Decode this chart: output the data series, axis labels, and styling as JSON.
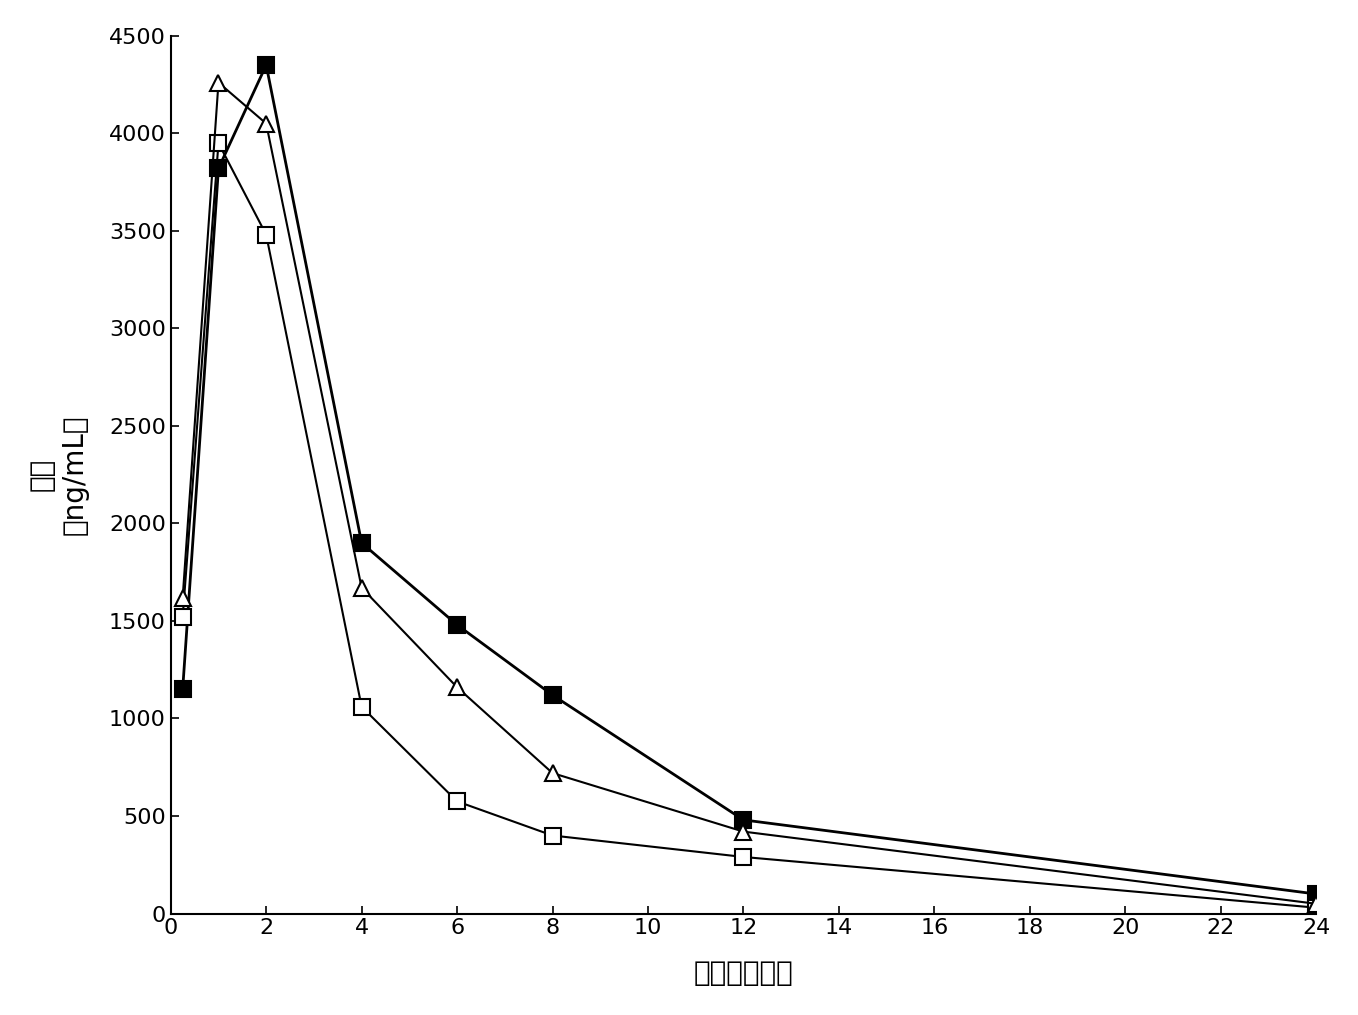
{
  "series": [
    {
      "name": "filled_square",
      "x": [
        0.25,
        1,
        2,
        4,
        6,
        8,
        12,
        24
      ],
      "y": [
        1150,
        3820,
        4350,
        1900,
        1480,
        1120,
        480,
        100
      ],
      "marker": "s",
      "filled": true,
      "color": "#000000",
      "linewidth": 2.0
    },
    {
      "name": "open_square",
      "x": [
        0.25,
        1,
        2,
        4,
        6,
        8,
        12,
        24
      ],
      "y": [
        1520,
        3950,
        3480,
        1060,
        575,
        400,
        290,
        30
      ],
      "marker": "s",
      "filled": false,
      "color": "#000000",
      "linewidth": 1.5
    },
    {
      "name": "open_triangle",
      "x": [
        0.25,
        1,
        2,
        4,
        6,
        8,
        12,
        24
      ],
      "y": [
        1620,
        4260,
        4050,
        1670,
        1160,
        720,
        420,
        50
      ],
      "marker": "^",
      "filled": false,
      "color": "#000000",
      "linewidth": 1.5
    }
  ],
  "xlabel": "时间（小时）",
  "ylabel_line1": "浓度",
  "ylabel_line2": "（ng/mL）",
  "xlim": [
    0,
    24
  ],
  "ylim": [
    0,
    4500
  ],
  "xticks": [
    0,
    2,
    4,
    6,
    8,
    10,
    12,
    14,
    16,
    18,
    20,
    22,
    24
  ],
  "yticks": [
    0,
    500,
    1000,
    1500,
    2000,
    2500,
    3000,
    3500,
    4000,
    4500
  ],
  "background_color": "#ffffff",
  "marker_size": 11,
  "tick_labelsize": 16,
  "label_fontsize": 20
}
